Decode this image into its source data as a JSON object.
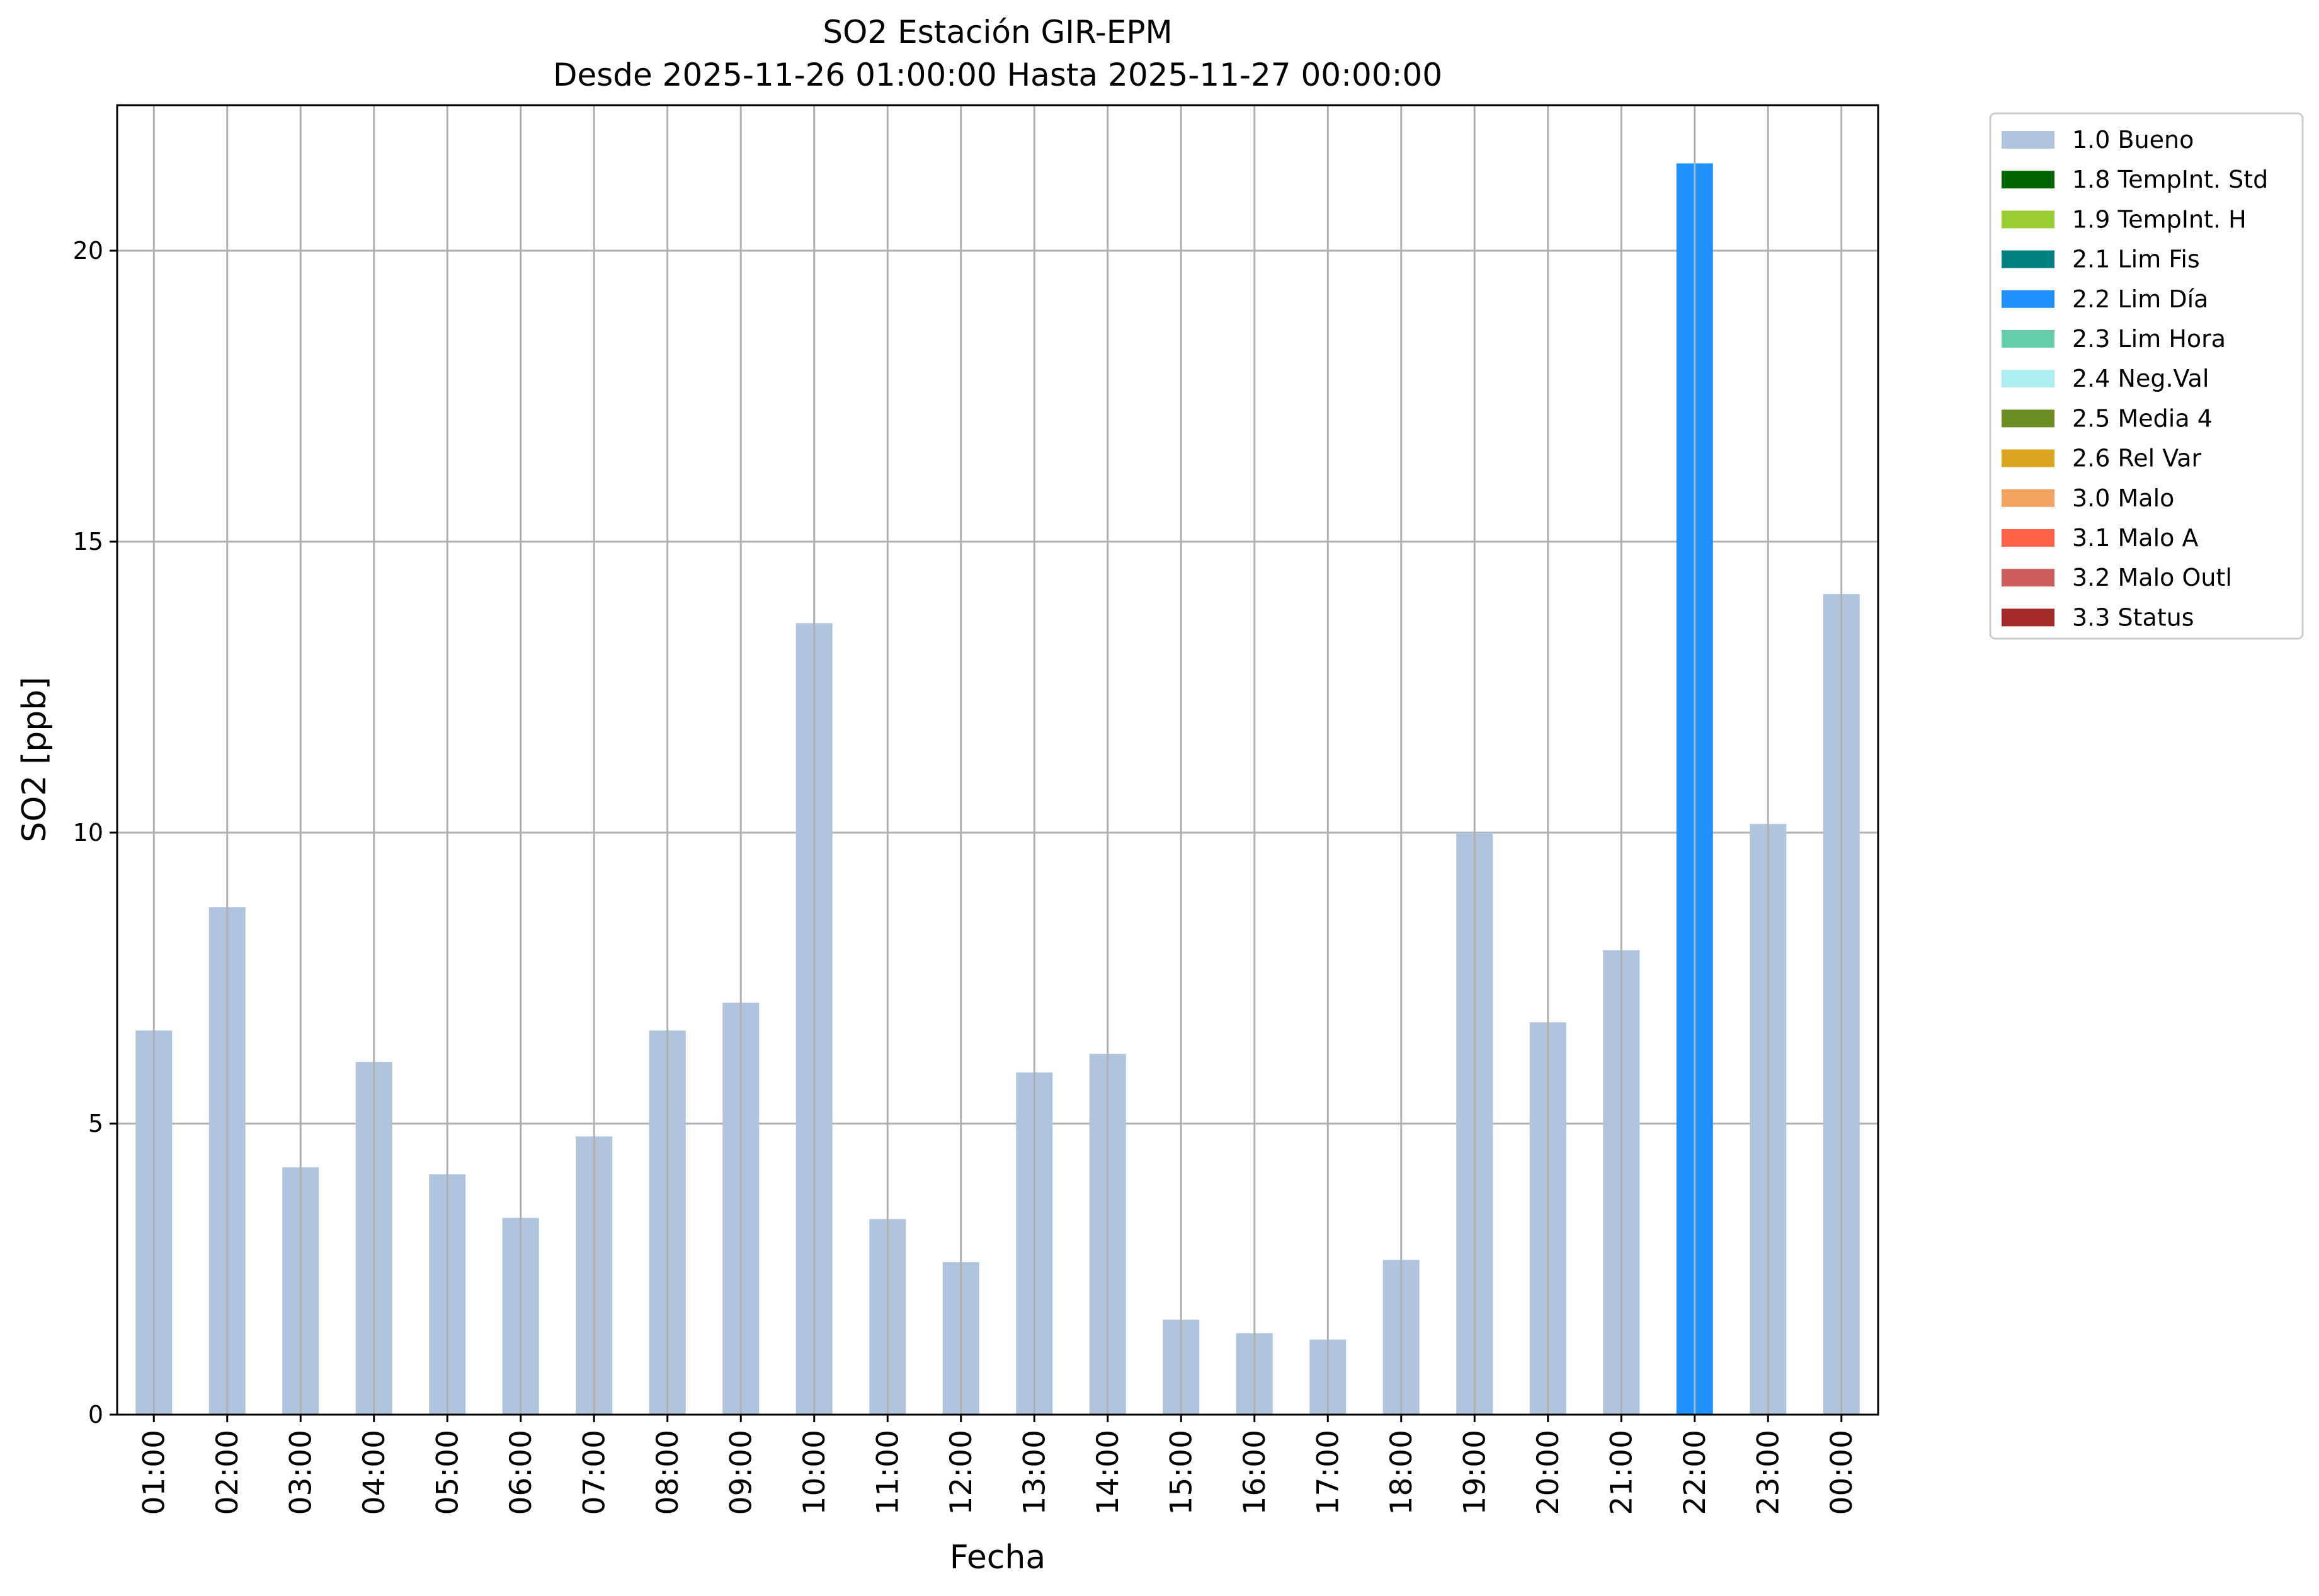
{
  "chart_data": {
    "type": "bar",
    "title": "SO2 Estación GIR-EPM",
    "subtitle": "Desde 2025-11-26 01:00:00 Hasta 2025-11-27 00:00:00",
    "xlabel": "Fecha",
    "ylabel": "SO2 [ppb]",
    "ylim": [
      0,
      22.5
    ],
    "yticks": [
      0,
      5,
      10,
      15,
      20
    ],
    "grid": true,
    "legend_position": "outside-right",
    "categories": [
      "01:00",
      "02:00",
      "03:00",
      "04:00",
      "05:00",
      "06:00",
      "07:00",
      "08:00",
      "09:00",
      "10:00",
      "11:00",
      "12:00",
      "13:00",
      "14:00",
      "15:00",
      "16:00",
      "17:00",
      "18:00",
      "19:00",
      "20:00",
      "21:00",
      "22:00",
      "23:00",
      "00:00"
    ],
    "values": [
      6.6,
      8.72,
      4.25,
      6.06,
      4.13,
      3.38,
      4.78,
      6.6,
      7.08,
      13.6,
      3.36,
      2.62,
      5.88,
      6.2,
      1.63,
      1.4,
      1.29,
      2.66,
      10.0,
      6.74,
      7.98,
      21.5,
      10.15,
      14.1
    ],
    "flags": [
      "1.0 Bueno",
      "1.0 Bueno",
      "1.0 Bueno",
      "1.0 Bueno",
      "1.0 Bueno",
      "1.0 Bueno",
      "1.0 Bueno",
      "1.0 Bueno",
      "1.0 Bueno",
      "1.0 Bueno",
      "1.0 Bueno",
      "1.0 Bueno",
      "1.0 Bueno",
      "1.0 Bueno",
      "1.0 Bueno",
      "1.0 Bueno",
      "1.0 Bueno",
      "1.0 Bueno",
      "1.0 Bueno",
      "1.0 Bueno",
      "1.0 Bueno",
      "2.2 Lim Día",
      "1.0 Bueno",
      "1.0 Bueno"
    ],
    "legend": [
      {
        "label": "1.0 Bueno",
        "color": "#b0c4de"
      },
      {
        "label": "1.8 TempInt. Std",
        "color": "#006400"
      },
      {
        "label": "1.9 TempInt. H",
        "color": "#9acd32"
      },
      {
        "label": "2.1 Lim Fis",
        "color": "#008080"
      },
      {
        "label": "2.2 Lim Día",
        "color": "#1e90ff"
      },
      {
        "label": "2.3 Lim Hora",
        "color": "#66cdaa"
      },
      {
        "label": "2.4 Neg.Val",
        "color": "#afeeee"
      },
      {
        "label": "2.5 Media 4",
        "color": "#6b8e23"
      },
      {
        "label": "2.6 Rel Var",
        "color": "#daa520"
      },
      {
        "label": "3.0 Malo",
        "color": "#f4a460"
      },
      {
        "label": "3.1 Malo A",
        "color": "#ff6347"
      },
      {
        "label": "3.2 Malo Outl",
        "color": "#cd5c5c"
      },
      {
        "label": "3.3 Status",
        "color": "#a52a2a"
      }
    ]
  }
}
